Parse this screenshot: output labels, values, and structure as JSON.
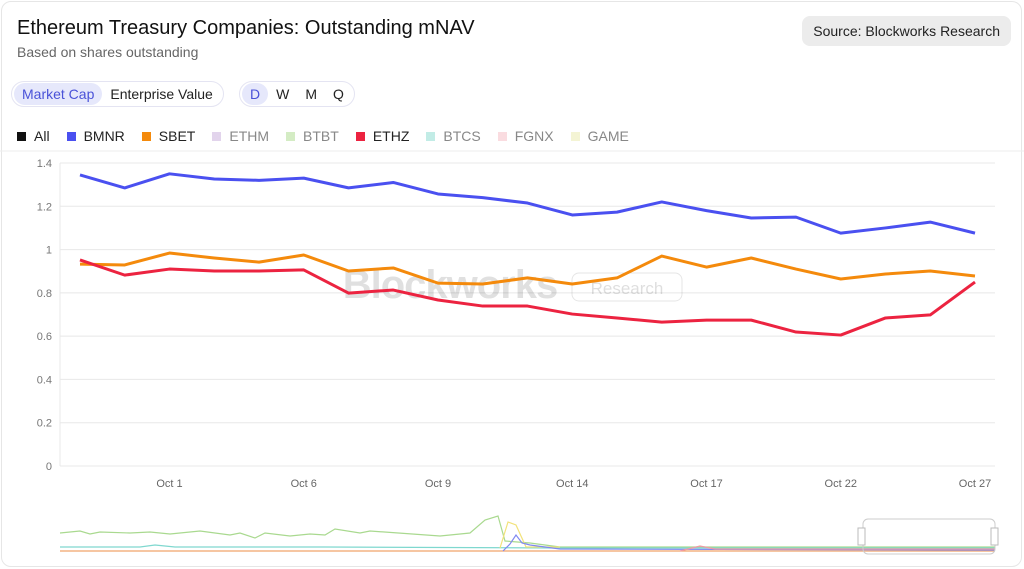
{
  "header": {
    "title": "Ethereum Treasury Companies: Outstanding mNAV",
    "subtitle": "Based on shares outstanding",
    "source": "Source: Blockworks Research"
  },
  "controls": {
    "metric": [
      "Market Cap",
      "Enterprise Value"
    ],
    "metric_selected": "Market Cap",
    "period": [
      "D",
      "W",
      "M",
      "Q"
    ],
    "period_selected": "D"
  },
  "legend": [
    {
      "name": "All",
      "color": "#111111",
      "active": true
    },
    {
      "name": "BMNR",
      "color": "#4a50f0",
      "active": true
    },
    {
      "name": "SBET",
      "color": "#f48a0c",
      "active": true
    },
    {
      "name": "ETHM",
      "color": "#e2d4ec",
      "active": false
    },
    {
      "name": "BTBT",
      "color": "#d4ecc4",
      "active": false
    },
    {
      "name": "ETHZ",
      "color": "#ec2340",
      "active": true
    },
    {
      "name": "BTCS",
      "color": "#c2ece6",
      "active": false
    },
    {
      "name": "FGNX",
      "color": "#fadce0",
      "active": false
    },
    {
      "name": "GAME",
      "color": "#f4f4d4",
      "active": false
    }
  ],
  "watermark": {
    "brand": "Blockworks",
    "tag": "Research"
  },
  "chart_data": {
    "type": "line",
    "x": [
      "Sep 29",
      "Sep 30",
      "Oct 1",
      "Oct 2",
      "Oct 3",
      "Oct 6",
      "Oct 7",
      "Oct 8",
      "Oct 9",
      "Oct 10",
      "Oct 13",
      "Oct 14",
      "Oct 15",
      "Oct 16",
      "Oct 17",
      "Oct 20",
      "Oct 21",
      "Oct 22",
      "Oct 23",
      "Oct 24",
      "Oct 27"
    ],
    "xticks": [
      "Oct 1",
      "Oct 6",
      "Oct 9",
      "Oct 14",
      "Oct 17",
      "Oct 22",
      "Oct 27"
    ],
    "yticks": [
      "0",
      "0.2",
      "0.4",
      "0.6",
      "0.8",
      "1",
      "1.2",
      "1.4"
    ],
    "ylim": [
      0,
      1.4
    ],
    "grid": true,
    "series": [
      {
        "name": "BMNR",
        "color": "#4a50f0",
        "values": [
          1.345,
          1.285,
          1.35,
          1.326,
          1.32,
          1.33,
          1.285,
          1.31,
          1.257,
          1.24,
          1.215,
          1.16,
          1.173,
          1.22,
          1.18,
          1.146,
          1.15,
          1.076,
          1.1,
          1.127,
          1.076
        ]
      },
      {
        "name": "SBET",
        "color": "#f48a0c",
        "values": [
          0.933,
          0.929,
          0.984,
          0.961,
          0.942,
          0.975,
          0.901,
          0.915,
          0.845,
          0.841,
          0.869,
          0.841,
          0.869,
          0.97,
          0.919,
          0.961,
          0.91,
          0.864,
          0.887,
          0.901,
          0.878
        ]
      },
      {
        "name": "ETHZ",
        "color": "#ec2340",
        "values": [
          0.952,
          0.882,
          0.91,
          0.901,
          0.901,
          0.906,
          0.799,
          0.813,
          0.767,
          0.739,
          0.739,
          0.702,
          0.684,
          0.665,
          0.674,
          0.674,
          0.619,
          0.605,
          0.684,
          0.698,
          0.85
        ]
      }
    ]
  }
}
